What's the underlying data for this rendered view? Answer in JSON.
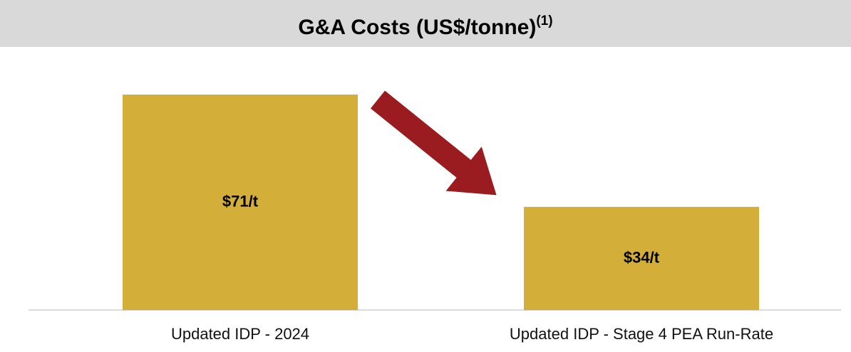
{
  "chart_data": {
    "type": "bar",
    "title": "G&A Costs (US$/tonne)",
    "title_superscript": "(1)",
    "categories": [
      "Updated IDP - 2024",
      "Updated IDP - Stage 4 PEA Run-Rate"
    ],
    "values": [
      71,
      34
    ],
    "value_labels": [
      "$71/t",
      "$34/t"
    ],
    "color": "#d3ae38"
  }
}
